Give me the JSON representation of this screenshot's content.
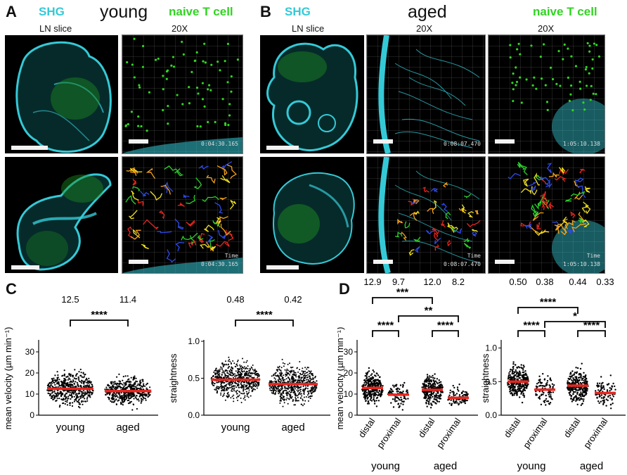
{
  "panelA": {
    "letter": "A",
    "shg": "SHG",
    "group": "young",
    "cell": "naive T cell",
    "col1": "LN slice",
    "col2": "20X",
    "timestamp_top": "0:04:30.165",
    "time_label": "Time",
    "timestamp_bottom": "0:04:30.165"
  },
  "panelB": {
    "letter": "B",
    "shg": "SHG",
    "group": "aged",
    "cell": "naive T cell",
    "col1": "LN slice",
    "col2": "20X",
    "col3": "20X",
    "timestamp_mid_top": "0:08:07.470",
    "timestamp_right_top": "1:05:10.138",
    "time_label": "Time",
    "timestamp_mid_bottom": "0:08:07.470",
    "timestamp_right_bottom": "1:05:10.138"
  },
  "panelC": {
    "letter": "C"
  },
  "panelD": {
    "letter": "D"
  },
  "colors": {
    "shg": "#35c9d6",
    "tcell": "#31d421",
    "median": "#e8261f"
  },
  "chart_data": [
    {
      "type": "scatter",
      "id": "C-velocity",
      "categories": [
        "young",
        "aged"
      ],
      "ylabel": "mean velocity (µm min⁻¹)",
      "ylim": [
        0,
        35
      ],
      "yticks": [
        0,
        10,
        20,
        30
      ],
      "medians": [
        12.5,
        11.4
      ],
      "median_labels": [
        "12.5",
        "11.4"
      ],
      "spread": [
        [
          1,
          30
        ],
        [
          1,
          26
        ]
      ],
      "comparisons": [
        {
          "from": 0,
          "to": 1,
          "label": "****"
        }
      ]
    },
    {
      "type": "scatter",
      "id": "C-straightness",
      "categories": [
        "young",
        "aged"
      ],
      "ylabel": "straightness",
      "ylim": [
        0,
        1.0
      ],
      "yticks": [
        0.0,
        0.5,
        1.0
      ],
      "ytick_labels": [
        "0.0",
        "0.5",
        "1.0"
      ],
      "medians": [
        0.48,
        0.42
      ],
      "median_labels": [
        "0.48",
        "0.42"
      ],
      "spread": [
        [
          0.03,
          0.97
        ],
        [
          0.03,
          1.0
        ]
      ],
      "comparisons": [
        {
          "from": 0,
          "to": 1,
          "label": "****"
        }
      ]
    },
    {
      "type": "scatter",
      "id": "D-velocity",
      "categories": [
        "distal",
        "proximal",
        "distal",
        "proximal"
      ],
      "groups": [
        "young",
        "aged"
      ],
      "ylabel": "mean velocity (µm min⁻¹)",
      "ylim": [
        0,
        35
      ],
      "yticks": [
        0,
        10,
        20,
        30
      ],
      "medians": [
        12.9,
        9.7,
        12.0,
        8.2
      ],
      "median_labels": [
        "12.9",
        "9.7",
        "12.0",
        "8.2"
      ],
      "spread": [
        [
          2,
          29
        ],
        [
          2,
          22
        ],
        [
          2,
          27
        ],
        [
          2,
          21
        ]
      ],
      "comparisons": [
        {
          "from": 0,
          "to": 2,
          "label": "***"
        },
        {
          "from": 1,
          "to": 3,
          "label": "**"
        },
        {
          "from": 0,
          "to": 1,
          "label": "****"
        },
        {
          "from": 2,
          "to": 3,
          "label": "****"
        }
      ]
    },
    {
      "type": "scatter",
      "id": "D-straightness",
      "categories": [
        "distal",
        "proximal",
        "distal",
        "proximal"
      ],
      "groups": [
        "young",
        "aged"
      ],
      "ylabel": "straightness",
      "ylim": [
        0,
        1.1
      ],
      "yticks": [
        0.0,
        0.5,
        1.0
      ],
      "ytick_labels": [
        "0.0",
        "0.5",
        "1.0"
      ],
      "medians": [
        0.5,
        0.38,
        0.44,
        0.33
      ],
      "median_labels": [
        "0.50",
        "0.38",
        "0.44",
        "0.33"
      ],
      "spread": [
        [
          0.03,
          0.95
        ],
        [
          0.05,
          0.88
        ],
        [
          0.03,
          0.95
        ],
        [
          0.03,
          0.9
        ]
      ],
      "comparisons": [
        {
          "from": 0,
          "to": 2,
          "label": "****"
        },
        {
          "from": 1,
          "to": 3,
          "label": "*"
        },
        {
          "from": 0,
          "to": 1,
          "label": "****"
        },
        {
          "from": 2,
          "to": 3,
          "label": "****"
        }
      ]
    }
  ]
}
